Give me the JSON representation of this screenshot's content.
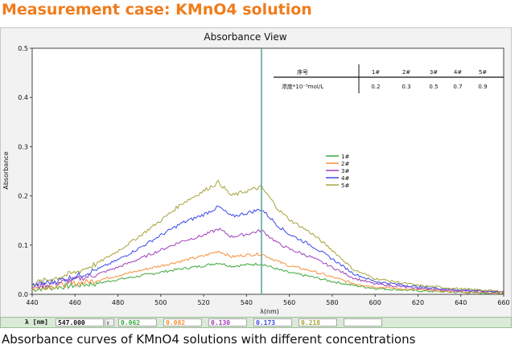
{
  "heading": "Measurement case: KMnO4 solution",
  "caption": "Absorbance curves of KMnO4 solutions with different concentrations",
  "status": {
    "wavelength_label": "λ [nm]",
    "wavelength_value": "547.000",
    "readings": [
      "0.062",
      "0.082",
      "0.130",
      "0.173",
      "0.218"
    ]
  },
  "chart_data": {
    "type": "line",
    "title": "Absorbance View",
    "xlabel": "λ(nm)",
    "ylabel": "Absorbance",
    "xlim": [
      440,
      660
    ],
    "ylim": [
      0,
      0.5
    ],
    "xticks": [
      440,
      460,
      480,
      500,
      520,
      540,
      560,
      580,
      600,
      620,
      640,
      660
    ],
    "yticks": [
      0.0,
      0.1,
      0.2,
      0.3,
      0.4,
      0.5
    ],
    "cursor_x": 547,
    "grid": true,
    "legend_position": "center-right",
    "x": [
      440,
      450,
      460,
      470,
      480,
      490,
      500,
      510,
      520,
      527,
      533,
      540,
      547,
      555,
      560,
      570,
      580,
      590,
      600,
      620,
      640,
      660
    ],
    "series": [
      {
        "name": "1#",
        "color": "#3aa83a",
        "values": [
          0.01,
          0.014,
          0.018,
          0.022,
          0.03,
          0.037,
          0.045,
          0.052,
          0.058,
          0.064,
          0.057,
          0.06,
          0.062,
          0.05,
          0.044,
          0.036,
          0.026,
          0.018,
          0.012,
          0.007,
          0.004,
          0.002
        ]
      },
      {
        "name": "2#",
        "color": "#f5903a",
        "values": [
          0.012,
          0.017,
          0.022,
          0.028,
          0.038,
          0.048,
          0.058,
          0.068,
          0.078,
          0.088,
          0.076,
          0.08,
          0.082,
          0.066,
          0.058,
          0.048,
          0.035,
          0.022,
          0.015,
          0.009,
          0.005,
          0.003
        ]
      },
      {
        "name": "3#",
        "color": "#a040b8",
        "values": [
          0.015,
          0.022,
          0.03,
          0.04,
          0.055,
          0.072,
          0.09,
          0.108,
          0.12,
          0.133,
          0.117,
          0.122,
          0.13,
          0.103,
          0.092,
          0.076,
          0.055,
          0.033,
          0.021,
          0.012,
          0.007,
          0.004
        ]
      },
      {
        "name": "4#",
        "color": "#3a48e8",
        "values": [
          0.018,
          0.026,
          0.036,
          0.05,
          0.07,
          0.094,
          0.12,
          0.145,
          0.162,
          0.178,
          0.158,
          0.165,
          0.173,
          0.138,
          0.122,
          0.1,
          0.072,
          0.042,
          0.026,
          0.015,
          0.009,
          0.005
        ]
      },
      {
        "name": "5#",
        "color": "#a8a33a",
        "values": [
          0.022,
          0.032,
          0.044,
          0.062,
          0.088,
          0.118,
          0.15,
          0.185,
          0.21,
          0.228,
          0.2,
          0.21,
          0.218,
          0.172,
          0.152,
          0.125,
          0.09,
          0.05,
          0.032,
          0.018,
          0.011,
          0.006
        ]
      }
    ],
    "table": {
      "header": [
        "序号",
        "1#",
        "2#",
        "3#",
        "4#",
        "5#"
      ],
      "row": [
        "浓度*10⁻⁵mol/L",
        "0.2",
        "0.3",
        "0.5",
        "0.7",
        "0.9"
      ]
    }
  }
}
